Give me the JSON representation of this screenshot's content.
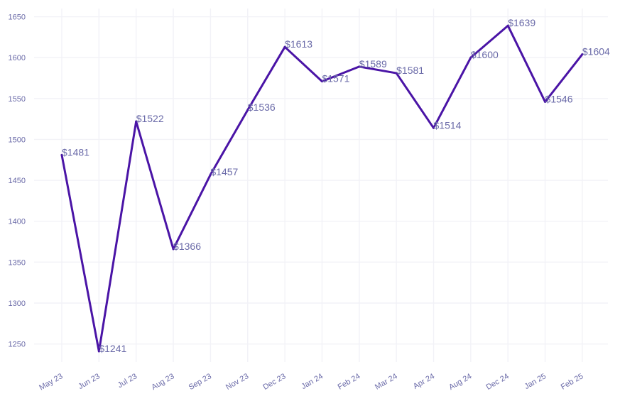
{
  "chart_data": {
    "type": "line",
    "title": "",
    "xlabel": "",
    "ylabel": "",
    "categories": [
      "May 23",
      "Jun 23",
      "Jul 23",
      "Aug 23",
      "Sep 23",
      "Nov 23",
      "Dec 23",
      "Jan 24",
      "Feb 24",
      "Mar 24",
      "Apr 24",
      "Aug 24",
      "Dec 24",
      "Jan 25",
      "Feb 25"
    ],
    "series": [
      {
        "values": [
          1481,
          1241,
          1522,
          1366,
          1457,
          1536,
          1613,
          1571,
          1589,
          1581,
          1514,
          1600,
          1639,
          1546,
          1604
        ]
      }
    ],
    "data_labels": [
      "$1481",
      "$1241",
      "$1522",
      "$1366",
      "$1457",
      "$1536",
      "$1613",
      "$1571",
      "$1589",
      "$1581",
      "$1514",
      "$1600",
      "$1639",
      "$1546",
      "$1604"
    ],
    "yticks": [
      1250,
      1300,
      1350,
      1400,
      1450,
      1500,
      1550,
      1600,
      1650
    ],
    "ylim": [
      1228,
      1660
    ],
    "grid": true,
    "legend": "none",
    "colors": {
      "line": "#4a14a6",
      "tick_text": "#6a6aa8",
      "grid": "#f2f2f7"
    }
  }
}
